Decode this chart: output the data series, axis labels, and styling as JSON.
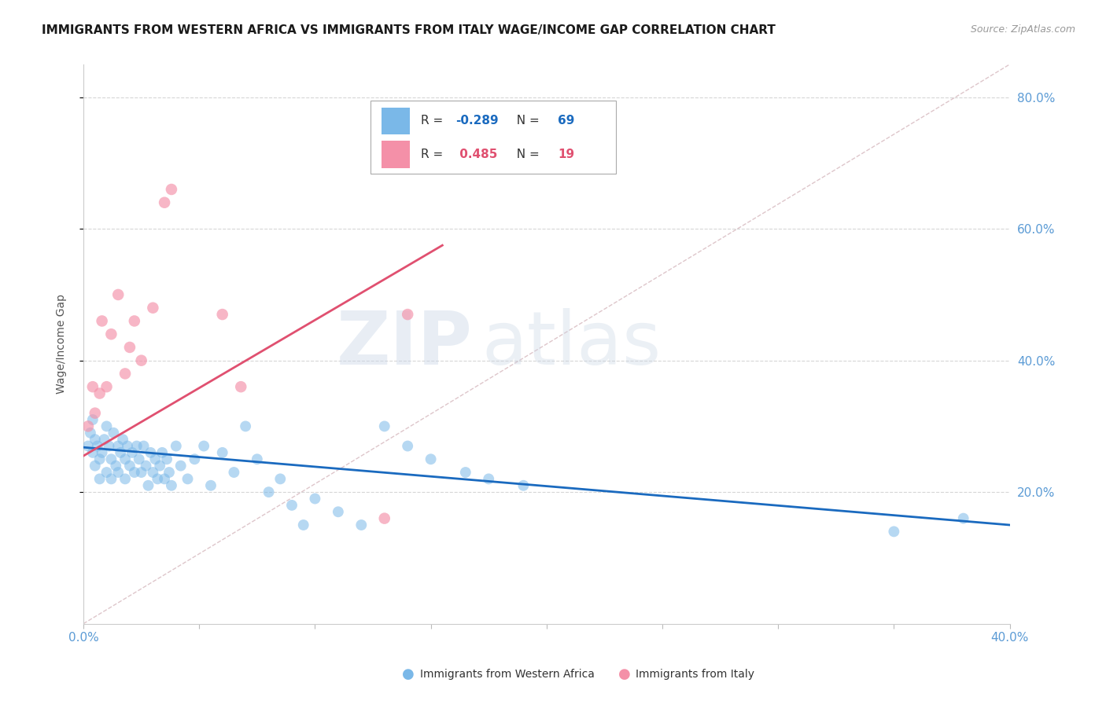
{
  "title": "IMMIGRANTS FROM WESTERN AFRICA VS IMMIGRANTS FROM ITALY WAGE/INCOME GAP CORRELATION CHART",
  "source": "Source: ZipAtlas.com",
  "ylabel": "Wage/Income Gap",
  "xlim": [
    0.0,
    0.4
  ],
  "ylim": [
    0.0,
    0.85
  ],
  "yticks": [
    0.2,
    0.4,
    0.6,
    0.8
  ],
  "xticks": [
    0.0,
    0.05,
    0.1,
    0.15,
    0.2,
    0.25,
    0.3,
    0.35,
    0.4
  ],
  "xtick_labels": [
    "0.0%",
    "",
    "",
    "",
    "",
    "",
    "",
    "",
    "40.0%"
  ],
  "blue_color": "#7ab8e8",
  "pink_color": "#f490a8",
  "blue_line_color": "#1a6abf",
  "pink_line_color": "#e05070",
  "dashed_line_color": "#c8a0a8",
  "r_blue": -0.289,
  "n_blue": 69,
  "r_pink": 0.485,
  "n_pink": 19,
  "blue_scatter_x": [
    0.002,
    0.003,
    0.004,
    0.004,
    0.005,
    0.005,
    0.006,
    0.007,
    0.007,
    0.008,
    0.009,
    0.01,
    0.01,
    0.011,
    0.012,
    0.012,
    0.013,
    0.014,
    0.015,
    0.015,
    0.016,
    0.017,
    0.018,
    0.018,
    0.019,
    0.02,
    0.021,
    0.022,
    0.023,
    0.024,
    0.025,
    0.026,
    0.027,
    0.028,
    0.029,
    0.03,
    0.031,
    0.032,
    0.033,
    0.034,
    0.035,
    0.036,
    0.037,
    0.038,
    0.04,
    0.042,
    0.045,
    0.048,
    0.052,
    0.055,
    0.06,
    0.065,
    0.07,
    0.075,
    0.08,
    0.085,
    0.09,
    0.095,
    0.1,
    0.11,
    0.12,
    0.13,
    0.14,
    0.15,
    0.165,
    0.175,
    0.19,
    0.35,
    0.38
  ],
  "blue_scatter_y": [
    0.27,
    0.29,
    0.26,
    0.31,
    0.28,
    0.24,
    0.27,
    0.25,
    0.22,
    0.26,
    0.28,
    0.3,
    0.23,
    0.27,
    0.25,
    0.22,
    0.29,
    0.24,
    0.27,
    0.23,
    0.26,
    0.28,
    0.25,
    0.22,
    0.27,
    0.24,
    0.26,
    0.23,
    0.27,
    0.25,
    0.23,
    0.27,
    0.24,
    0.21,
    0.26,
    0.23,
    0.25,
    0.22,
    0.24,
    0.26,
    0.22,
    0.25,
    0.23,
    0.21,
    0.27,
    0.24,
    0.22,
    0.25,
    0.27,
    0.21,
    0.26,
    0.23,
    0.3,
    0.25,
    0.2,
    0.22,
    0.18,
    0.15,
    0.19,
    0.17,
    0.15,
    0.3,
    0.27,
    0.25,
    0.23,
    0.22,
    0.21,
    0.14,
    0.16
  ],
  "pink_scatter_x": [
    0.002,
    0.004,
    0.005,
    0.007,
    0.008,
    0.01,
    0.012,
    0.015,
    0.018,
    0.02,
    0.022,
    0.025,
    0.03,
    0.035,
    0.038,
    0.06,
    0.068,
    0.13,
    0.14
  ],
  "pink_scatter_y": [
    0.3,
    0.36,
    0.32,
    0.35,
    0.46,
    0.36,
    0.44,
    0.5,
    0.38,
    0.42,
    0.46,
    0.4,
    0.48,
    0.64,
    0.66,
    0.47,
    0.36,
    0.16,
    0.47
  ],
  "blue_trend_x": [
    0.0,
    0.4
  ],
  "blue_trend_y": [
    0.268,
    0.15
  ],
  "pink_trend_x": [
    0.0,
    0.155
  ],
  "pink_trend_y": [
    0.255,
    0.575
  ],
  "dashed_trend_x": [
    0.0,
    0.4
  ],
  "dashed_trend_y": [
    0.0,
    0.85
  ],
  "watermark_zip": "ZIP",
  "watermark_atlas": "atlas",
  "background_color": "#ffffff",
  "grid_color": "#cccccc",
  "title_fontsize": 11,
  "tick_label_color": "#5b9bd5",
  "legend_label_blue": "Immigrants from Western Africa",
  "legend_label_pink": "Immigrants from Italy"
}
